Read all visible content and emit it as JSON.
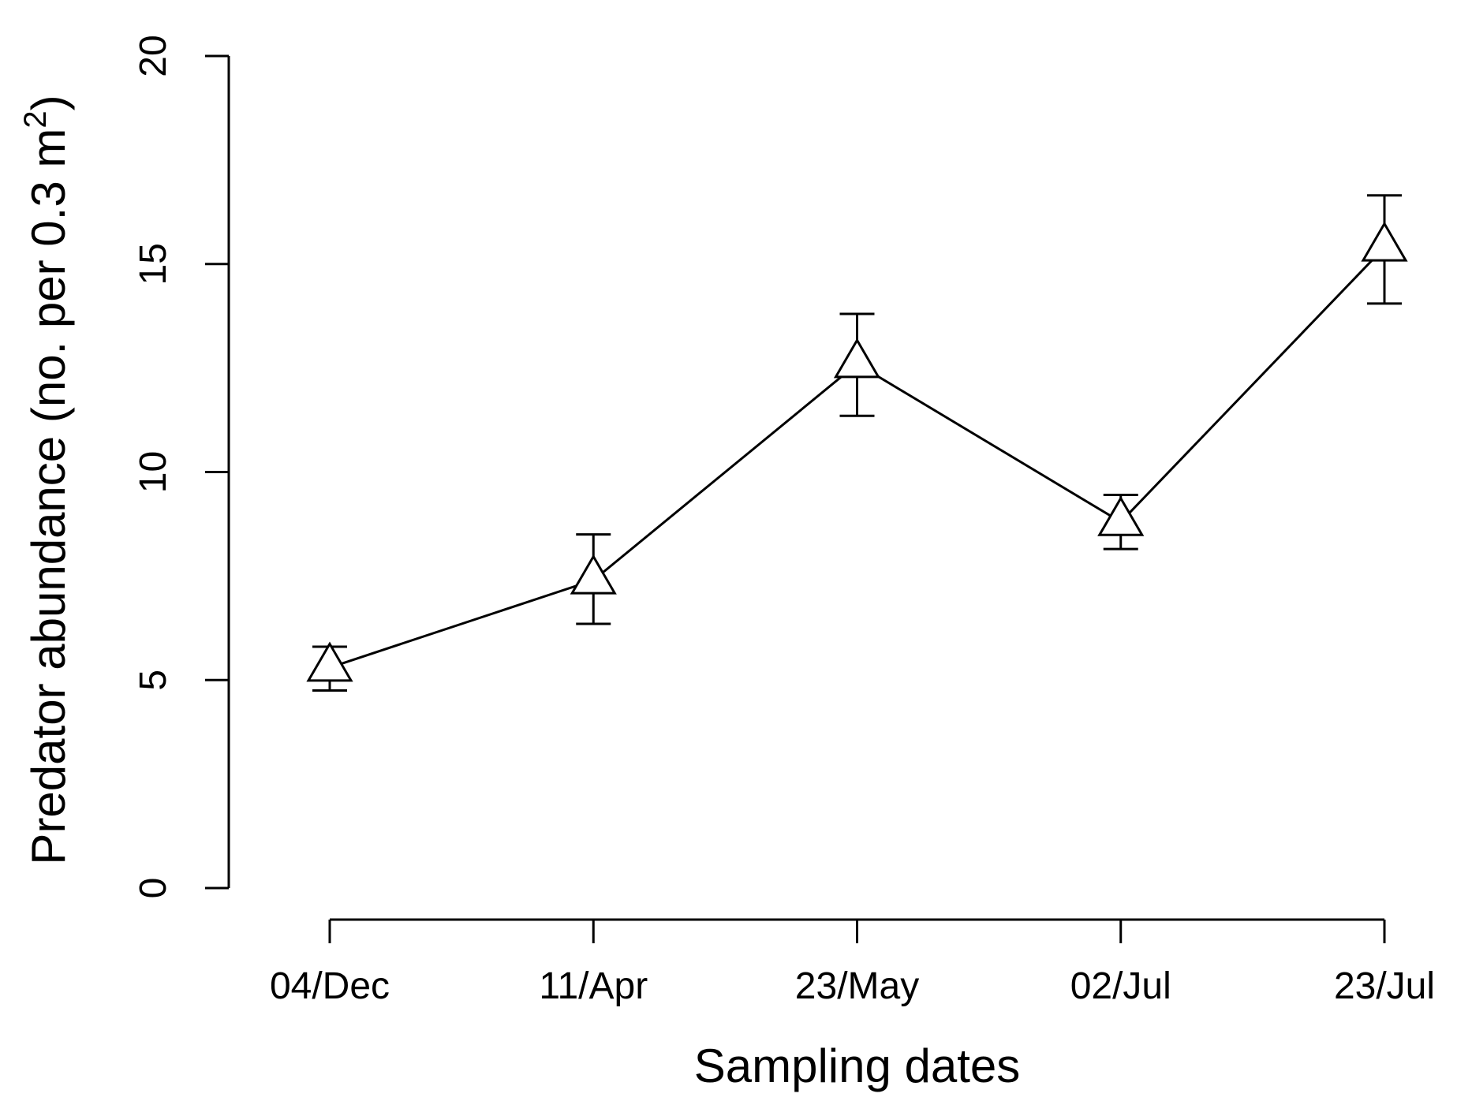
{
  "chart_data": {
    "type": "line",
    "categories": [
      "04/Dec",
      "11/Apr",
      "23/May",
      "02/Jul",
      "23/Jul"
    ],
    "series": [
      {
        "values": [
          5.3,
          7.4,
          12.6,
          8.8,
          15.4
        ],
        "error_low": [
          4.75,
          6.35,
          11.35,
          8.15,
          14.05
        ],
        "error_high": [
          5.8,
          8.5,
          13.8,
          9.45,
          16.65
        ],
        "marker": "open-triangle"
      }
    ],
    "xlabel": "Sampling dates",
    "ylabel": "Predator abundance (no. per 0.3 m",
    "ylabel_superscript": "2",
    "ylabel_close": ")",
    "ylim": [
      0,
      20
    ],
    "yticks": [
      0,
      5,
      10,
      15,
      20
    ],
    "grid": false,
    "colors": {
      "line": "#000000",
      "marker_fill": "#ffffff",
      "background": "#ffffff"
    }
  }
}
